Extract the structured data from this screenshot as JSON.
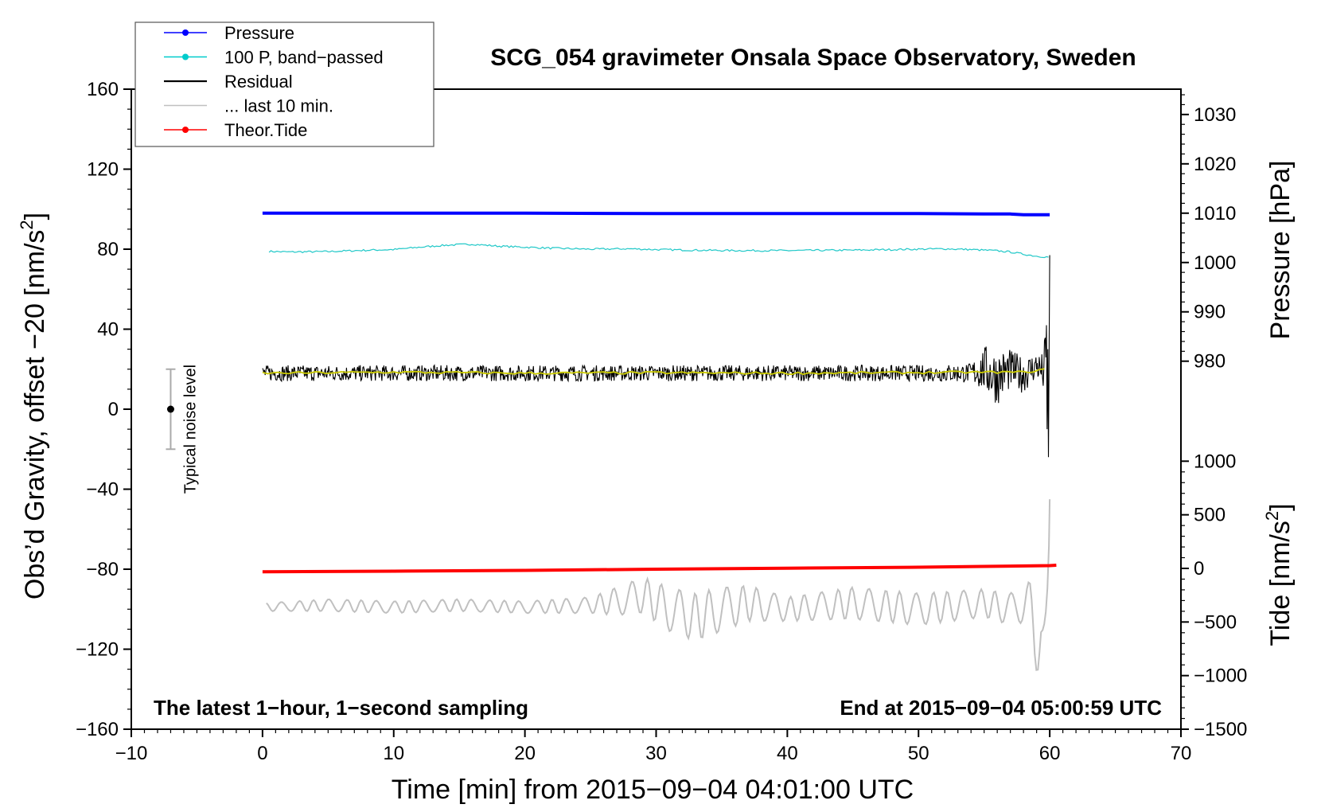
{
  "chart_data": {
    "type": "line",
    "title": "SCG_054 gravimeter Onsala Space Observatory, Sweden",
    "xlabel": "Time [min] from 2015−09−04 04:01:00 UTC",
    "ylabel": "Obs’d Gravity, offset −20 [nm/s",
    "ylabel_sup": "2",
    "ylabel_end": "]",
    "y2label_pressure": "Pressure [hPa]",
    "y2label_tide": "Tide [nm/s",
    "y2label_tide_sup": "2",
    "y2label_tide_end": "]",
    "xlim": [
      -10,
      70
    ],
    "ylim": [
      -160,
      160
    ],
    "x_ticks": [
      -10,
      0,
      10,
      20,
      30,
      40,
      50,
      60,
      70
    ],
    "x_tick_labels": [
      "−10",
      "0",
      "10",
      "20",
      "30",
      "40",
      "50",
      "60",
      "70"
    ],
    "y_ticks": [
      160,
      120,
      80,
      40,
      0,
      -40,
      -80,
      -120,
      -160
    ],
    "y_tick_labels": [
      "160",
      "120",
      "80",
      "40",
      "0",
      "−40",
      "−80",
      "−120",
      "−160"
    ],
    "pressure_ticks": [
      1030,
      1020,
      1010,
      1000,
      990,
      980
    ],
    "pressure_tick_labels": [
      "1030",
      "1020",
      "1010",
      "1000",
      "990",
      "980"
    ],
    "pressure_axis_gravity_equiv": {
      "pressure_at": [
        1010,
        980
      ],
      "gravity_at": [
        98,
        24
      ]
    },
    "tide_ticks": [
      1000,
      500,
      0,
      -500,
      -1000,
      -1500
    ],
    "tide_tick_labels": [
      "1000",
      "500",
      "0",
      "−500",
      "−1000",
      "−1500"
    ],
    "tide_axis_gravity_equiv": {
      "tide_at": [
        1000,
        -1500
      ],
      "gravity_at": [
        -26,
        -160
      ]
    },
    "legend": {
      "placement": "top-left",
      "entries": [
        {
          "label": "Pressure",
          "color": "#0000ff",
          "marker": true
        },
        {
          "label": "100 P, band−passed",
          "color": "#00cccc",
          "marker": true
        },
        {
          "label": "Residual",
          "color": "#000000",
          "marker": false
        },
        {
          "label": "... last 10 min.",
          "color": "#c0c0c0",
          "marker": false
        },
        {
          "label": "Theor.Tide",
          "color": "#ff0000",
          "marker": true
        }
      ]
    },
    "noise_indicator": {
      "label": "Typical noise level",
      "x": -7,
      "center": 0,
      "low": -20,
      "high": 20
    },
    "notes": {
      "bottom_left": "The latest 1−hour, 1−second sampling",
      "bottom_right": "End at 2015−09−04 05:00:59 UTC"
    },
    "series": [
      {
        "name": "Pressure",
        "color": "#0000ff",
        "x": [
          0,
          10,
          20,
          30,
          40,
          50,
          55,
          57,
          58,
          60
        ],
        "y": [
          98,
          98,
          98,
          97.8,
          97.8,
          97.8,
          97.6,
          97.6,
          97.2,
          97.2
        ]
      },
      {
        "name": "100 P, band-passed",
        "color": "#20c8c8",
        "x": [
          0,
          2,
          5,
          8,
          10,
          12,
          14,
          16,
          18,
          20,
          22,
          25,
          28,
          30,
          33,
          36,
          40,
          45,
          50,
          52,
          54,
          56,
          57,
          58,
          59,
          60
        ],
        "y": [
          79,
          78.6,
          78.8,
          79.5,
          79.8,
          81,
          82,
          82.5,
          81.5,
          81,
          80.5,
          80,
          80.2,
          79.8,
          79.5,
          79.3,
          79.3,
          79.5,
          80,
          80.2,
          79.8,
          79.2,
          78.6,
          77.5,
          76.5,
          76
        ]
      },
      {
        "name": "Residual",
        "color": "#000000",
        "x": [
          0,
          10,
          20,
          30,
          40,
          50,
          54,
          55,
          56,
          57,
          58,
          59,
          59.5,
          59.8,
          60
        ],
        "y": [
          18,
          18,
          18,
          18,
          18,
          18,
          18,
          20,
          16,
          20,
          17,
          22,
          18,
          30,
          77
        ],
        "noise_amplitude_nm_s2": [
          4,
          4,
          4,
          4,
          4,
          4,
          5,
          12,
          14,
          10,
          9,
          7,
          10,
          20,
          0
        ],
        "final_dip": {
          "x": 60,
          "y": -24
        }
      },
      {
        "name": "Smoothed residual",
        "color": "#cccc00",
        "x": [
          0,
          10,
          20,
          30,
          40,
          50,
          55,
          58,
          60
        ],
        "y": [
          18,
          18.5,
          18,
          18.2,
          18,
          18.3,
          18.5,
          18.5,
          20
        ]
      },
      {
        "name": "... last 10 min.",
        "color": "#c0c0c0",
        "x": [
          0,
          5,
          10,
          15,
          20,
          25,
          27,
          29,
          31,
          33,
          35,
          37,
          40,
          45,
          50,
          55,
          57,
          58.5,
          59,
          59.5,
          60
        ],
        "y": [
          -99,
          -98,
          -99,
          -98,
          -99,
          -98,
          -96,
          -93,
          -100,
          -104,
          -100,
          -97,
          -100,
          -97,
          -100,
          -97,
          -100,
          -96,
          -112,
          -142,
          -45
        ],
        "oscillation_amplitude_nm_s2": [
          2,
          3,
          3,
          3,
          3,
          4,
          7,
          9,
          11,
          12,
          11,
          9,
          6,
          8,
          8,
          7,
          8,
          10,
          20,
          30,
          10
        ]
      },
      {
        "name": "Theor.Tide",
        "color": "#ff0000",
        "x": [
          0,
          10,
          20,
          30,
          40,
          50,
          55,
          60,
          60.5
        ],
        "y": [
          -81.3,
          -81,
          -80.6,
          -80,
          -79.5,
          -79,
          -78.6,
          -78.2,
          -78
        ]
      }
    ]
  }
}
